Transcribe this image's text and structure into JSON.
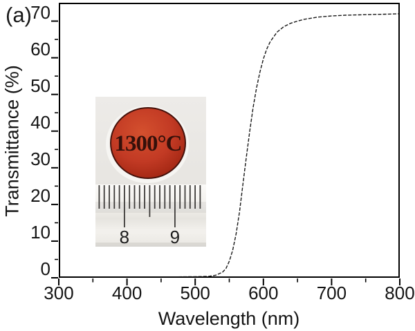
{
  "panel_label": "(a)",
  "chart_data": {
    "type": "line",
    "title": "",
    "xlabel": "Wavelength (nm)",
    "ylabel": "Transmittance (%)",
    "xlim": [
      300,
      800
    ],
    "ylim": [
      0,
      75
    ],
    "x_major_ticks": [
      300,
      400,
      500,
      600,
      700,
      800
    ],
    "x_minor_ticks": [
      350,
      450,
      550,
      650,
      750
    ],
    "y_major_ticks": [
      0,
      10,
      20,
      30,
      40,
      50,
      60,
      70
    ],
    "y_minor_ticks": [
      5,
      15,
      25,
      35,
      45,
      55,
      65
    ],
    "grid": false,
    "frame": true,
    "curve_color": "#161616",
    "curve_style": "fine-dashed",
    "series": [
      {
        "name": "transmittance",
        "x": [
          300,
          350,
          400,
          450,
          500,
          520,
          530,
          540,
          545,
          550,
          555,
          560,
          565,
          570,
          575,
          580,
          585,
          590,
          595,
          600,
          605,
          610,
          620,
          630,
          640,
          650,
          660,
          680,
          700,
          720,
          740,
          760,
          780,
          800
        ],
        "y": [
          0.2,
          0.2,
          0.2,
          0.2,
          0.3,
          0.4,
          0.7,
          1.5,
          2.5,
          4.5,
          7.5,
          12,
          18,
          25.5,
          33,
          40,
          46.5,
          51.8,
          56.2,
          59.7,
          62.4,
          64.4,
          67,
          68.5,
          69.4,
          70,
          70.5,
          71.1,
          71.4,
          71.6,
          71.7,
          71.8,
          71.9,
          72
        ]
      }
    ]
  },
  "inset_photo": {
    "sample_label": "1300°C",
    "ruler_numbers": [
      "8",
      "9"
    ],
    "disc_color": "#c23a24",
    "disc_color_bright": "#d4502e",
    "disc_color_dark": "#8c2112",
    "disc_rim_color": "#45110a",
    "background_color": "#eae8e5",
    "ruler_color": "#f4f2ee",
    "tick_color": "#3c3a38"
  }
}
